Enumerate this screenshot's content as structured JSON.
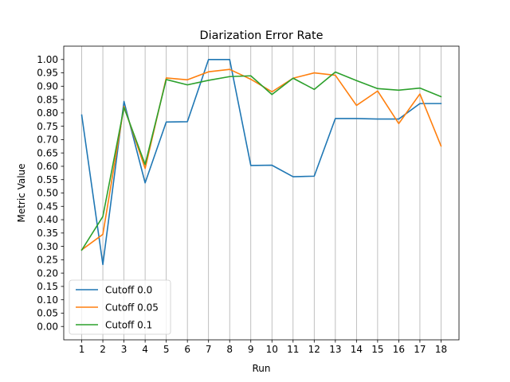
{
  "chart_data": {
    "type": "line",
    "title": "Diarization Error Rate",
    "xlabel": "Run",
    "ylabel": "Metric Value",
    "x": [
      1,
      2,
      3,
      4,
      5,
      6,
      7,
      8,
      9,
      10,
      11,
      12,
      13,
      14,
      15,
      16,
      17,
      18
    ],
    "xlim": [
      0.15,
      18.85
    ],
    "ylim": [
      -0.05,
      1.05
    ],
    "yticks": [
      "0.00",
      "0.05",
      "0.10",
      "0.15",
      "0.20",
      "0.25",
      "0.30",
      "0.35",
      "0.40",
      "0.45",
      "0.50",
      "0.55",
      "0.60",
      "0.65",
      "0.70",
      "0.75",
      "0.80",
      "0.85",
      "0.90",
      "0.95",
      "1.00"
    ],
    "grid": "vertical",
    "legend_position": "lower-left",
    "series": [
      {
        "name": "Cutoff 0.0",
        "color": "#1f77b4",
        "values": [
          0.792,
          0.232,
          0.843,
          0.538,
          0.766,
          0.767,
          1.0,
          1.0,
          0.603,
          0.604,
          0.561,
          0.563,
          0.779,
          0.779,
          0.777,
          0.777,
          0.835,
          0.835
        ]
      },
      {
        "name": "Cutoff 0.05",
        "color": "#ff7f0e",
        "values": [
          0.287,
          0.345,
          0.824,
          0.592,
          0.931,
          0.924,
          0.954,
          0.963,
          0.926,
          0.879,
          0.93,
          0.95,
          0.941,
          0.828,
          0.882,
          0.76,
          0.871,
          0.676
        ]
      },
      {
        "name": "Cutoff 0.1",
        "color": "#2ca02c",
        "values": [
          0.286,
          0.412,
          0.82,
          0.607,
          0.925,
          0.905,
          0.922,
          0.936,
          0.939,
          0.869,
          0.93,
          0.888,
          0.953,
          0.921,
          0.891,
          0.885,
          0.893,
          0.861
        ]
      }
    ]
  }
}
